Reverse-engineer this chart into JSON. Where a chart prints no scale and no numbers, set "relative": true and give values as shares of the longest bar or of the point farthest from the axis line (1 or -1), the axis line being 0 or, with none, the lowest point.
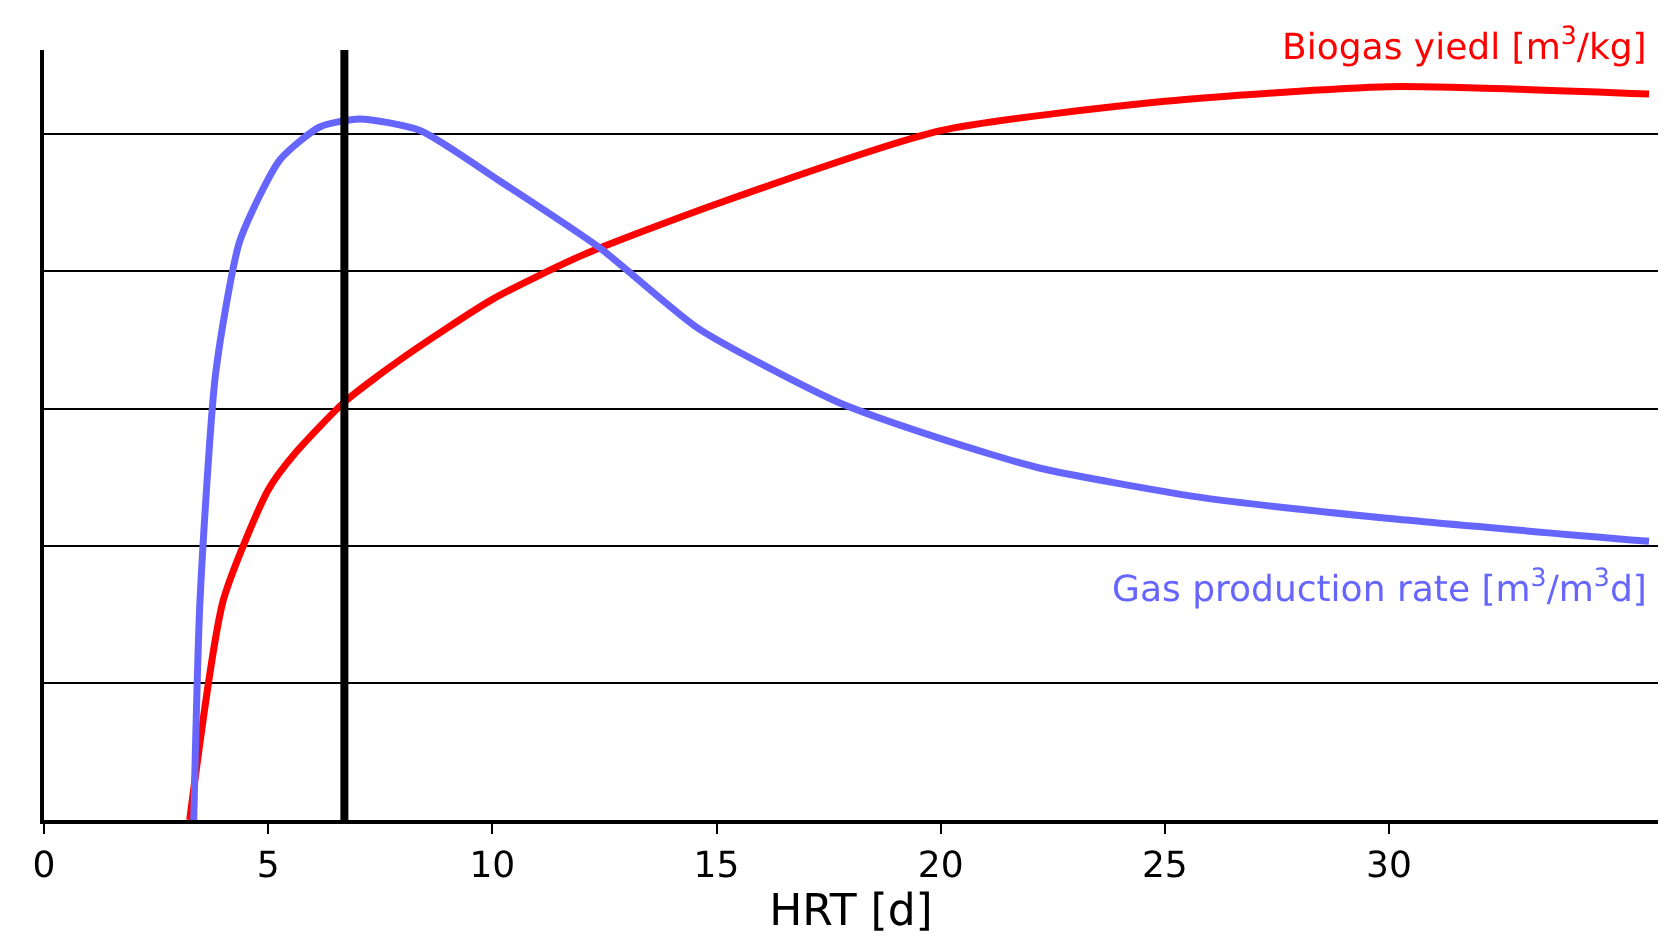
{
  "chart_data": {
    "type": "line",
    "relative": true,
    "xlabel": "HRT [d]",
    "xlim": [
      0,
      36
    ],
    "xticks": [
      0,
      5,
      10,
      15,
      20,
      25,
      30
    ],
    "grid": "y",
    "legend": false,
    "tick_labels": "x",
    "series": [
      {
        "name": "Biogas yiedl [m$^{3}$/kg]",
        "color": "#ff0000",
        "x": [
          3.25,
          4,
          5,
          5.6,
          6.7,
          8,
          10,
          12,
          15,
          20,
          25,
          30,
          35.8
        ],
        "values": [
          0,
          0.3,
          0.45,
          0.5,
          0.57,
          0.63,
          0.71,
          0.77,
          0.84,
          0.94,
          0.98,
          1.0,
          0.99
        ]
      },
      {
        "name": "Gas production rate [m$^{3}$/m$^{3}$d]",
        "color": "#6666ff",
        "x": [
          3.34,
          3.48,
          3.83,
          4.37,
          5.26,
          6.15,
          7.04,
          8.4,
          10.2,
          12.4,
          14.6,
          17.7,
          20,
          22.2,
          25.8,
          30.2,
          35.8
        ],
        "values": [
          0,
          0.3,
          0.61,
          0.79,
          0.9,
          0.945,
          0.956,
          0.94,
          0.87,
          0.78,
          0.67,
          0.57,
          0.52,
          0.48,
          0.44,
          0.41,
          0.38
        ]
      }
    ],
    "ref_lines": [
      {
        "axis": "x",
        "value": 6.7,
        "color": "#000000"
      }
    ]
  }
}
